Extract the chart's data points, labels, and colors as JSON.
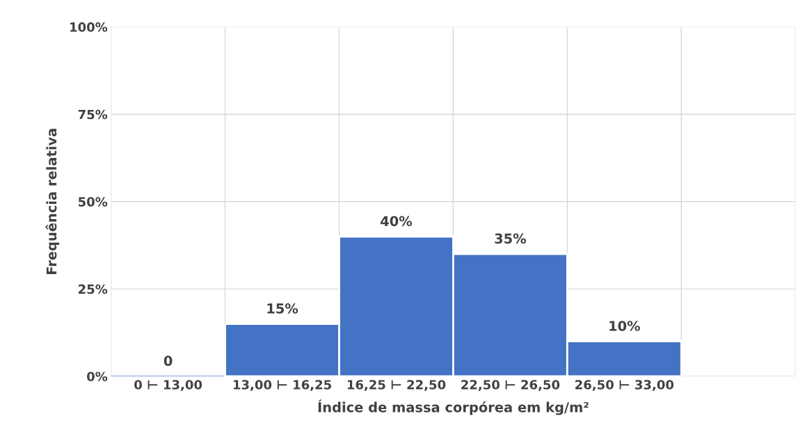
{
  "chart_data": {
    "type": "bar",
    "xlabel": "Índice de massa corpórea em kg/m²",
    "ylabel": "Frequência relativa",
    "categories": [
      "0 ⊢ 13,00",
      "13,00 ⊢ 16,25",
      "16,25 ⊢ 22,50",
      "22,50 ⊢ 26,50",
      "26,50 ⊢ 33,00",
      null
    ],
    "values": [
      0,
      15,
      40,
      35,
      10,
      null
    ],
    "value_labels": [
      "0",
      "15%",
      "40%",
      "35%",
      "10%",
      null
    ],
    "color": "#4472c4",
    "ylim": [
      0,
      100
    ],
    "yticks": [
      {
        "value": 0,
        "label": "0%"
      },
      {
        "value": 25,
        "label": "25%"
      },
      {
        "value": 50,
        "label": "50%"
      },
      {
        "value": 75,
        "label": "75%"
      },
      {
        "value": 100,
        "label": "100%"
      }
    ],
    "grid": true
  }
}
